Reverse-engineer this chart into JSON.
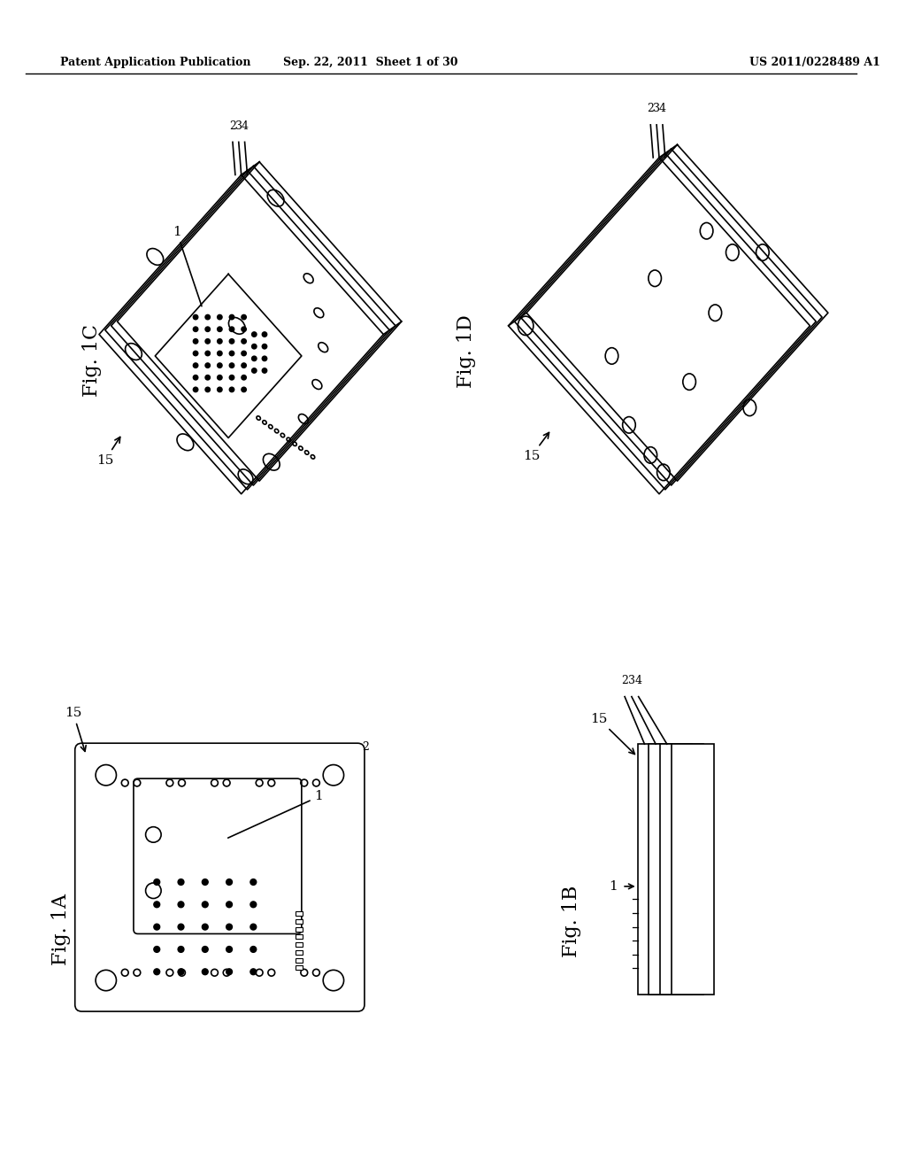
{
  "background_color": "#ffffff",
  "header_left": "Patent Application Publication",
  "header_center": "Sep. 22, 2011  Sheet 1 of 30",
  "header_right": "US 2011/0228489 A1",
  "line_color": "#000000",
  "text_color": "#000000"
}
